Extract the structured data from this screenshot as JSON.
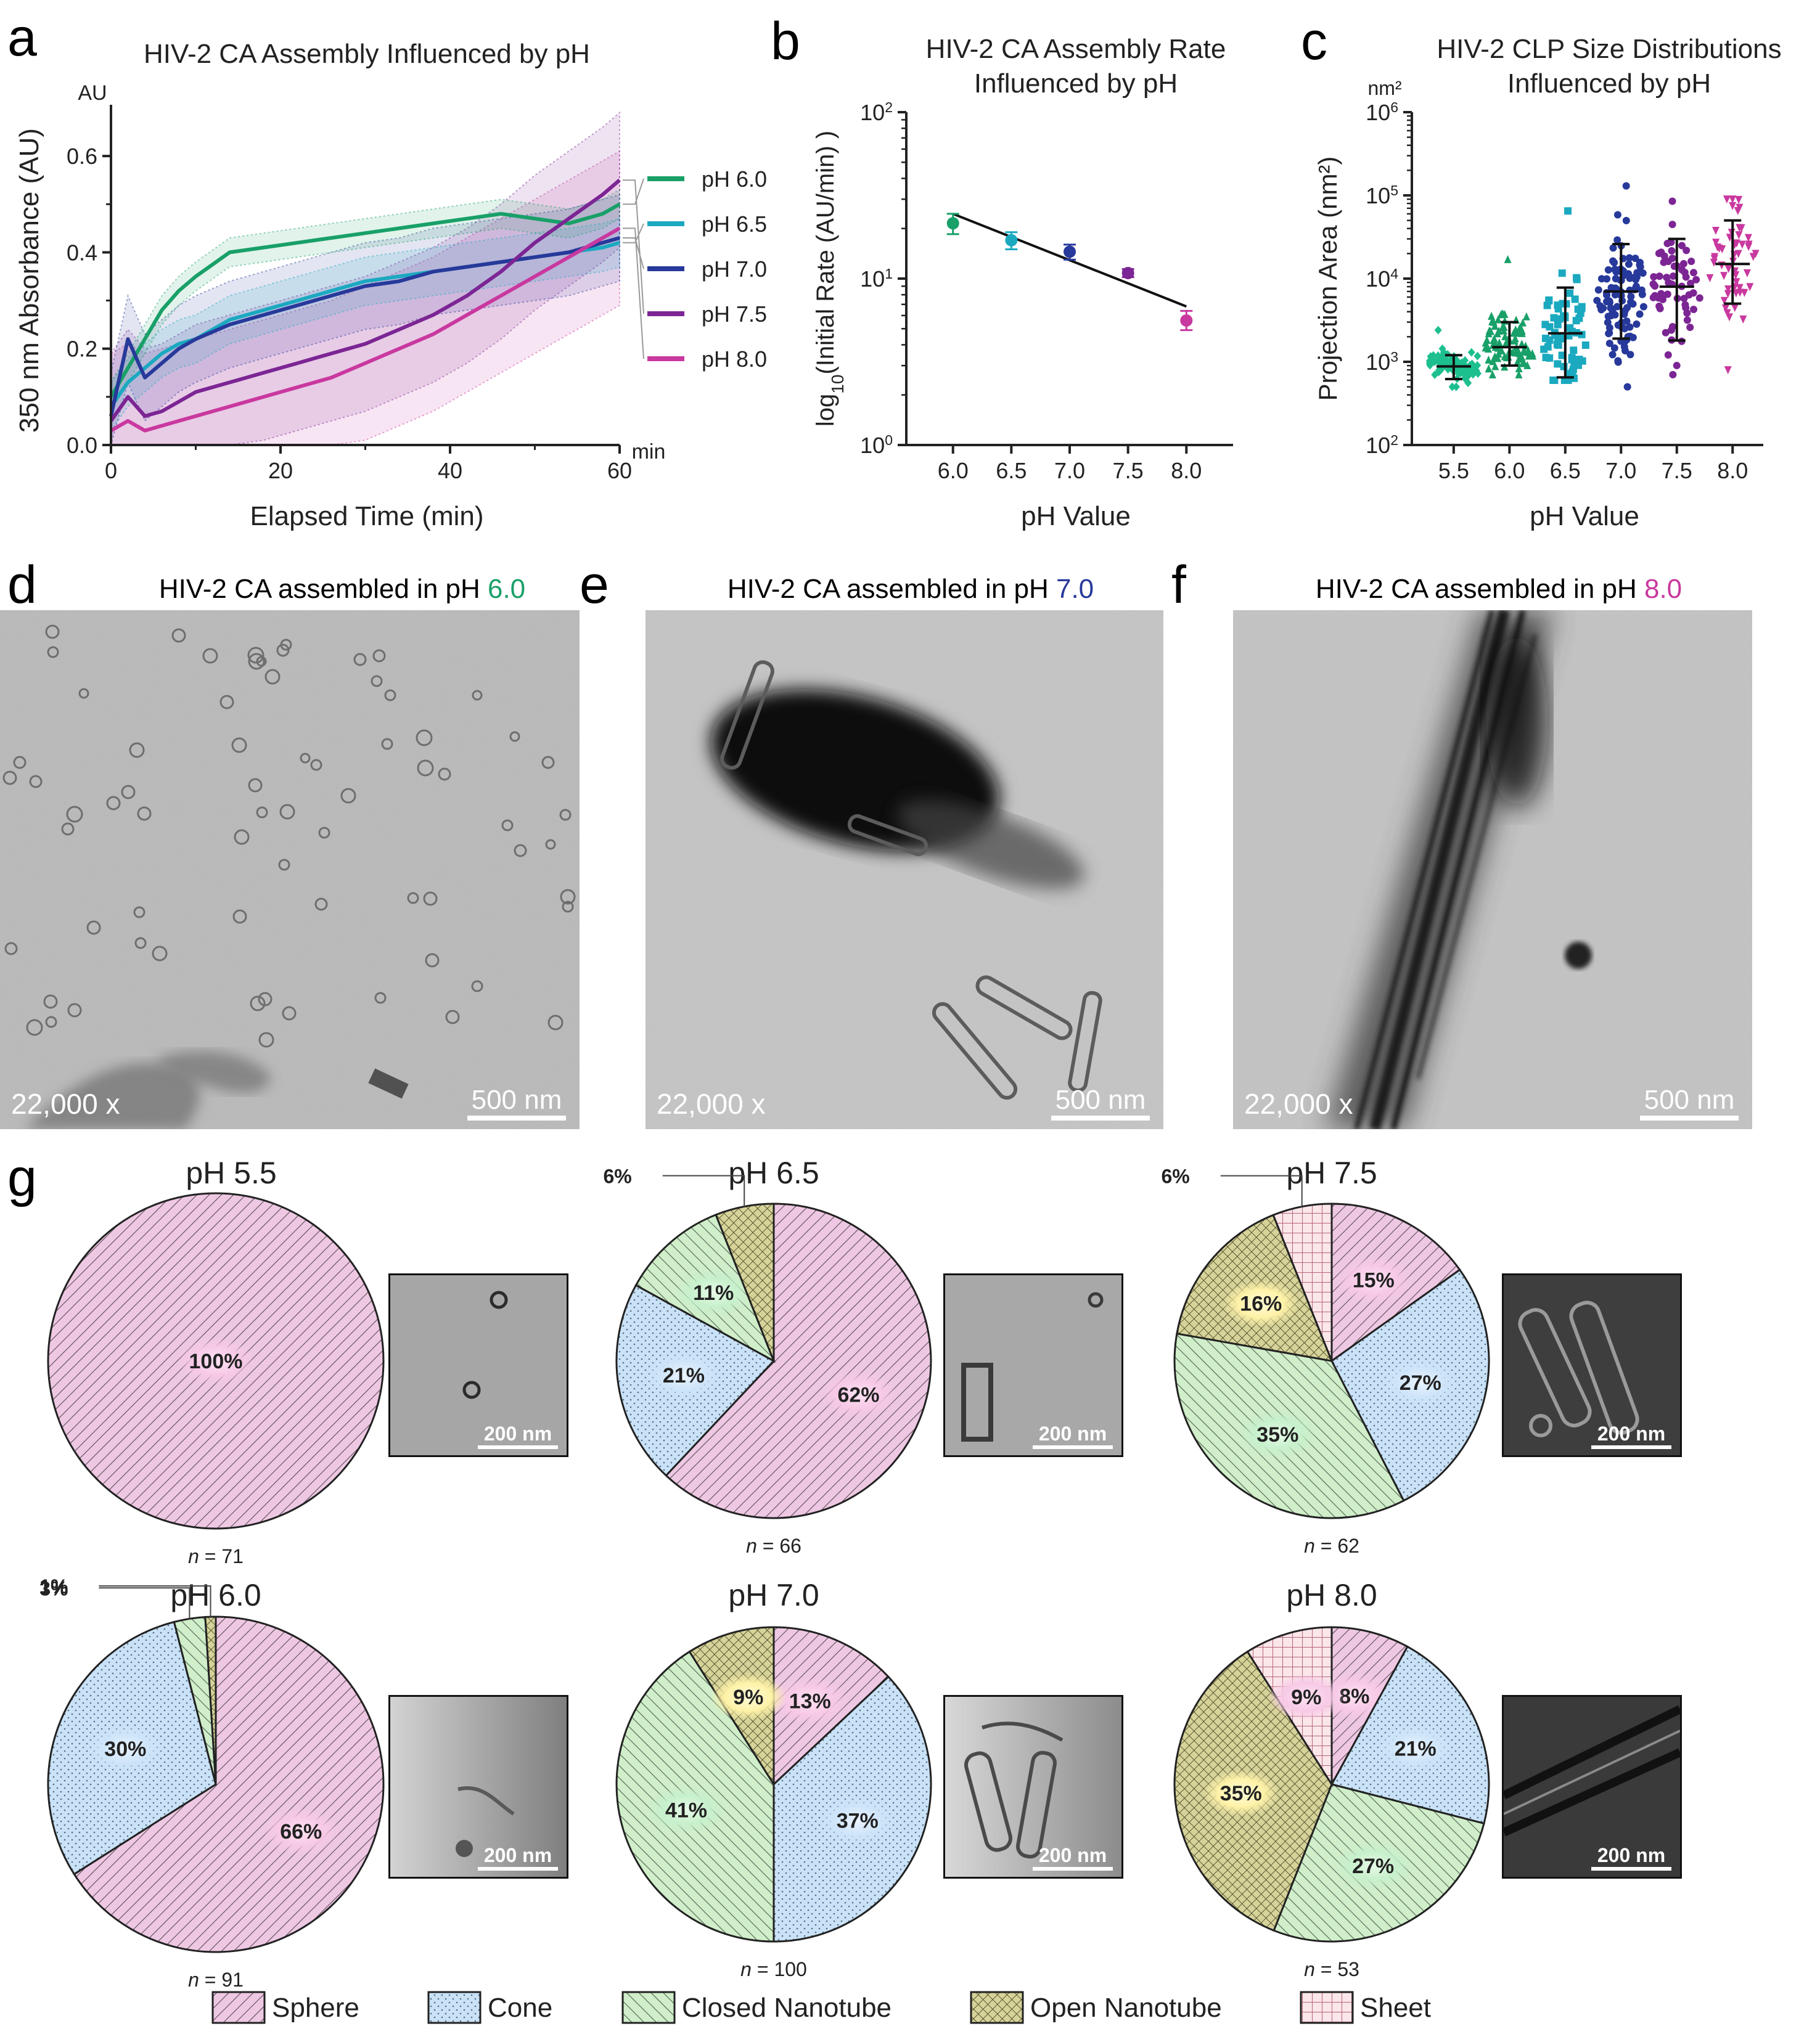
{
  "panel_letters": [
    "a",
    "b",
    "c",
    "d",
    "e",
    "f",
    "g"
  ],
  "colors": {
    "ph55": "#1dbf8f",
    "ph60": "#18a068",
    "ph65": "#1ba9c0",
    "ph70": "#27399a",
    "ph75": "#7c2594",
    "ph80": "#c9389f",
    "sphere": "#eec8e3",
    "cone": "#c9e2f7",
    "closed": "#cfeec9",
    "open": "#d6d39a",
    "sheet": "#fbe6ea"
  },
  "chart_data": [
    {
      "type": "line",
      "panel": "a",
      "title": "HIV-2 CA Assembly Influenced by pH",
      "xlabel": "Elapsed Time (min)",
      "ylabel": "350 nm Absorbance (AU)",
      "x_unit": "min",
      "y_unit": "AU",
      "xlim": [
        0,
        60
      ],
      "ylim": [
        0,
        0.7
      ],
      "xticks": [
        "0",
        "20",
        "40",
        "60"
      ],
      "yticks": [
        "0.0",
        "0.2",
        "0.4",
        "0.6"
      ],
      "x": [
        0,
        2,
        4,
        6,
        8,
        10,
        14,
        18,
        22,
        26,
        30,
        34,
        38,
        42,
        46,
        50,
        54,
        58,
        60
      ],
      "series": [
        {
          "name": "pH 6.0",
          "color": "#18a068",
          "values": [
            0.1,
            0.16,
            0.22,
            0.28,
            0.32,
            0.35,
            0.4,
            0.41,
            0.42,
            0.43,
            0.44,
            0.45,
            0.46,
            0.47,
            0.48,
            0.47,
            0.46,
            0.48,
            0.5
          ],
          "band": 0.03
        },
        {
          "name": "pH 6.5",
          "color": "#1ba9c0",
          "values": [
            0.08,
            0.13,
            0.16,
            0.19,
            0.21,
            0.22,
            0.26,
            0.28,
            0.3,
            0.32,
            0.34,
            0.35,
            0.36,
            0.37,
            0.38,
            0.39,
            0.4,
            0.41,
            0.42
          ],
          "band": 0.05
        },
        {
          "name": "pH 7.0",
          "color": "#27399a",
          "values": [
            0.06,
            0.22,
            0.14,
            0.17,
            0.2,
            0.22,
            0.25,
            0.27,
            0.29,
            0.31,
            0.33,
            0.34,
            0.36,
            0.37,
            0.38,
            0.39,
            0.4,
            0.42,
            0.43
          ],
          "band": 0.09
        },
        {
          "name": "pH 7.5",
          "color": "#7c2594",
          "values": [
            0.05,
            0.1,
            0.06,
            0.07,
            0.09,
            0.11,
            0.13,
            0.15,
            0.17,
            0.19,
            0.21,
            0.24,
            0.27,
            0.31,
            0.36,
            0.42,
            0.47,
            0.52,
            0.55
          ],
          "band": 0.14
        },
        {
          "name": "pH 8.0",
          "color": "#c9389f",
          "values": [
            0.03,
            0.05,
            0.03,
            0.04,
            0.05,
            0.06,
            0.08,
            0.1,
            0.12,
            0.14,
            0.17,
            0.2,
            0.23,
            0.27,
            0.31,
            0.35,
            0.39,
            0.43,
            0.45
          ],
          "band": 0.16
        }
      ]
    },
    {
      "type": "scatter",
      "panel": "b",
      "title": "HIV-2 CA Assembly Rate\nInfluenced by pH",
      "xlabel": "pH Value",
      "ylabel": "log10(Initial Rate (AU/min))",
      "ylabel_main": "log",
      "ylabel_sub": "10",
      "ylabel_rest": "(Initial Rate (AU/min) )",
      "yscale": "log",
      "xlim": [
        5.6,
        8.4
      ],
      "ylim": [
        1,
        100
      ],
      "xticks": [
        "6.0",
        "6.5",
        "7.0",
        "7.5",
        "8.0"
      ],
      "yticks": [
        "10",
        "10",
        "10"
      ],
      "ytick_exponents": [
        "0",
        "1",
        "2"
      ],
      "points": [
        {
          "x": 6.0,
          "y": 21.5,
          "err_lo": 18.5,
          "err_hi": 24.5,
          "color": "#18a068"
        },
        {
          "x": 6.5,
          "y": 17.0,
          "err_lo": 15.0,
          "err_hi": 19.0,
          "color": "#1ba9c0"
        },
        {
          "x": 7.0,
          "y": 14.5,
          "err_lo": 13.0,
          "err_hi": 16.0,
          "color": "#27399a"
        },
        {
          "x": 7.5,
          "y": 10.8,
          "err_lo": 10.2,
          "err_hi": 11.4,
          "color": "#7c2594"
        },
        {
          "x": 8.0,
          "y": 5.6,
          "err_lo": 4.9,
          "err_hi": 6.4,
          "color": "#c9389f"
        }
      ],
      "fit_line": {
        "x": [
          6.0,
          8.0
        ],
        "y": [
          24.5,
          6.8
        ]
      }
    },
    {
      "type": "scatter",
      "panel": "c",
      "title": "HIV-2 CLP Size Distributions\nInfluenced by pH",
      "xlabel": "pH Value",
      "ylabel": "Projection Area (nm²)",
      "y_unit": "nm²",
      "yscale": "log",
      "ylim": [
        100,
        1000000
      ],
      "categories": [
        "5.5",
        "6.0",
        "6.5",
        "7.0",
        "7.5",
        "8.0"
      ],
      "yticks": [
        "10",
        "10",
        "10",
        "10",
        "10"
      ],
      "ytick_exponents": [
        "2",
        "3",
        "4",
        "5",
        "6"
      ],
      "groups": [
        {
          "category": "5.5",
          "color": "#1dbf8f",
          "marker": "diamond",
          "n": 71,
          "median": 880,
          "lo": 620,
          "hi": 1200,
          "min": 500,
          "max": 2400
        },
        {
          "category": "6.0",
          "color": "#18a068",
          "marker": "triangle",
          "n": 91,
          "median": 1500,
          "lo": 900,
          "hi": 3000,
          "min": 700,
          "max": 17000
        },
        {
          "category": "6.5",
          "color": "#1ba9c0",
          "marker": "square",
          "n": 66,
          "median": 2200,
          "lo": 650,
          "hi": 7800,
          "min": 600,
          "max": 65000
        },
        {
          "category": "7.0",
          "color": "#27399a",
          "marker": "circle",
          "n": 100,
          "median": 7000,
          "lo": 1900,
          "hi": 26000,
          "min": 500,
          "max": 130000
        },
        {
          "category": "7.5",
          "color": "#7c2594",
          "marker": "circle",
          "n": 62,
          "median": 8000,
          "lo": 1800,
          "hi": 30000,
          "min": 700,
          "max": 85000
        },
        {
          "category": "8.0",
          "color": "#c9389f",
          "marker": "triangle-down",
          "n": 53,
          "median": 15000,
          "lo": 5000,
          "hi": 50000,
          "min": 800,
          "max": 90000
        }
      ]
    },
    {
      "type": "pie",
      "panel": "g",
      "legend": [
        "Sphere",
        "Cone",
        "Closed Nanotube",
        "Open Nanotube",
        "Sheet"
      ],
      "pies": [
        {
          "title": "pH 5.5",
          "n": "71",
          "slices": [
            {
              "label": "Sphere",
              "value": 100
            }
          ]
        },
        {
          "title": "pH 6.5",
          "n": "66",
          "slices": [
            {
              "label": "Sphere",
              "value": 62
            },
            {
              "label": "Cone",
              "value": 21
            },
            {
              "label": "Closed Nanotube",
              "value": 11
            },
            {
              "label": "Open Nanotube",
              "value": 6
            }
          ]
        },
        {
          "title": "pH 7.5",
          "n": "62",
          "slices": [
            {
              "label": "Sphere",
              "value": 15
            },
            {
              "label": "Cone",
              "value": 27
            },
            {
              "label": "Closed Nanotube",
              "value": 35
            },
            {
              "label": "Open Nanotube",
              "value": 16
            },
            {
              "label": "Sheet",
              "value": 6
            }
          ]
        },
        {
          "title": "pH 6.0",
          "n": "91",
          "slices": [
            {
              "label": "Sphere",
              "value": 66
            },
            {
              "label": "Cone",
              "value": 30
            },
            {
              "label": "Closed Nanotube",
              "value": 3
            },
            {
              "label": "Open Nanotube",
              "value": 1
            }
          ]
        },
        {
          "title": "pH 7.0",
          "n": "100",
          "slices": [
            {
              "label": "Sphere",
              "value": 13
            },
            {
              "label": "Cone",
              "value": 37
            },
            {
              "label": "Closed Nanotube",
              "value": 41
            },
            {
              "label": "Open Nanotube",
              "value": 9
            }
          ]
        },
        {
          "title": "pH 8.0",
          "n": "53",
          "slices": [
            {
              "label": "Sphere",
              "value": 8
            },
            {
              "label": "Cone",
              "value": 21
            },
            {
              "label": "Closed Nanotube",
              "value": 27
            },
            {
              "label": "Open Nanotube",
              "value": 35
            },
            {
              "label": "Sheet",
              "value": 9
            }
          ]
        }
      ]
    }
  ],
  "micrographs": {
    "d": {
      "title_prefix": "HIV-2 CA assembled in pH ",
      "ph": "6.0",
      "ph_color": "#18a068",
      "magnification": "22,000 x",
      "scale_bar": "500 nm"
    },
    "e": {
      "title_prefix": "HIV-2 CA assembled in pH ",
      "ph": "7.0",
      "ph_color": "#27399a",
      "magnification": "22,000 x",
      "scale_bar": "500 nm"
    },
    "f": {
      "title_prefix": "HIV-2 CA assembled in pH ",
      "ph": "8.0",
      "ph_color": "#c9389f",
      "magnification": "22,000 x",
      "scale_bar": "500 nm"
    }
  },
  "thumb_scale_bar": "200 nm",
  "n_prefix": "n",
  "n_eq": " = "
}
